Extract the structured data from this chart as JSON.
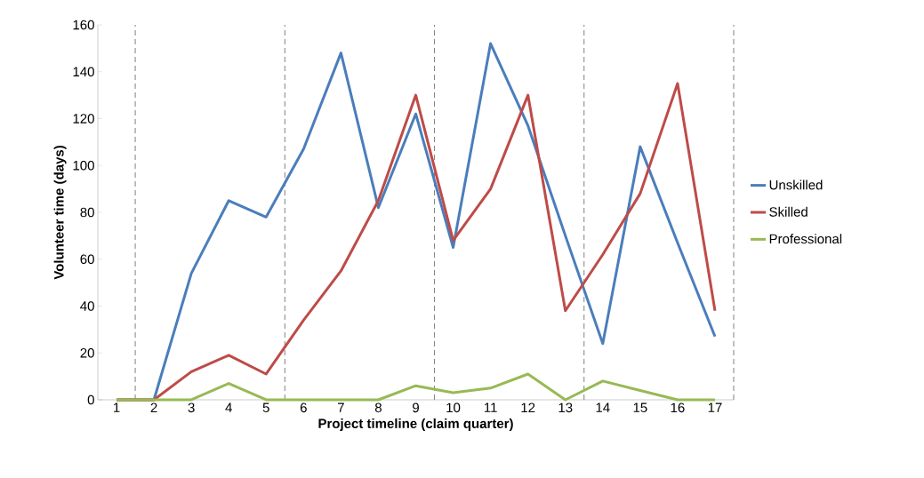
{
  "chart_data": {
    "type": "line",
    "xlabel": "Project timeline (claim quarter)",
    "ylabel": "Volunteer time (days)",
    "x": [
      1,
      2,
      3,
      4,
      5,
      6,
      7,
      8,
      9,
      10,
      11,
      12,
      13,
      14,
      15,
      16,
      17
    ],
    "series": [
      {
        "name": "Unskilled",
        "color": "#4a7ebb",
        "values": [
          0,
          0,
          54,
          85,
          78,
          107,
          148,
          82,
          122,
          65,
          152,
          117,
          70,
          24,
          108,
          67,
          27
        ]
      },
      {
        "name": "Skilled",
        "color": "#be4b48",
        "values": [
          0,
          0,
          12,
          19,
          11,
          34,
          55,
          85,
          130,
          68,
          90,
          130,
          38,
          62,
          88,
          135,
          38
        ]
      },
      {
        "name": "Professional",
        "color": "#98b954",
        "values": [
          0,
          0,
          0,
          7,
          0,
          0,
          0,
          0,
          6,
          3,
          5,
          11,
          0,
          8,
          4,
          0,
          0
        ]
      }
    ],
    "xlim": [
      0.5,
      17.5
    ],
    "xticks": [
      1,
      2,
      3,
      4,
      5,
      6,
      7,
      8,
      9,
      10,
      11,
      12,
      13,
      14,
      15,
      16,
      17
    ],
    "ylim": [
      0,
      160
    ],
    "yticks": [
      0,
      20,
      40,
      60,
      80,
      100,
      120,
      140,
      160
    ],
    "ref_lines": [
      {
        "axis": "x",
        "value": 1.5,
        "color": "#808080",
        "line_style": "dashed"
      },
      {
        "axis": "x",
        "value": 5.5,
        "color": "#808080",
        "line_style": "dashed"
      },
      {
        "axis": "x",
        "value": 9.5,
        "color": "#808080",
        "line_style": "dashed"
      },
      {
        "axis": "x",
        "value": 13.5,
        "color": "#808080",
        "line_style": "dashed"
      },
      {
        "axis": "x",
        "value": 17.5,
        "color": "#808080",
        "line_style": "dashed"
      }
    ],
    "grid": false,
    "legend": "right",
    "marker": "none",
    "line_style": "solid"
  }
}
